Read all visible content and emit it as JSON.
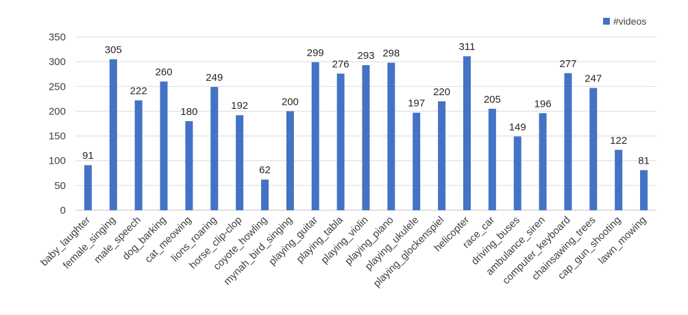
{
  "chart_data": {
    "type": "bar",
    "title": "",
    "xlabel": "",
    "ylabel": "",
    "ylim": [
      0,
      350
    ],
    "yticks": [
      0,
      50,
      100,
      150,
      200,
      250,
      300,
      350
    ],
    "grid": true,
    "legend_position": "top-right",
    "bar_color": "#4472C4",
    "categories": [
      "baby_laughter",
      "female_singing",
      "male_speech",
      "dog_barking",
      "cat_meowing",
      "lions_roaring",
      "horse_clip-clop",
      "coyote_howling",
      "mynah_bird_singing",
      "playing_guitar",
      "playing_tabla",
      "playing_violin",
      "playing_piano",
      "playing_ukulele",
      "playing_glockenspiel",
      "helicopter",
      "race_car",
      "driving_buses",
      "ambulance_siren",
      "computer_keyboard",
      "chainsawing_trees",
      "cap_gun_shooting",
      "lawn_mowing"
    ],
    "series": [
      {
        "name": "#videos",
        "values": [
          91,
          305,
          222,
          260,
          180,
          249,
          192,
          62,
          200,
          299,
          276,
          293,
          298,
          197,
          220,
          311,
          205,
          149,
          196,
          277,
          247,
          122,
          81
        ]
      }
    ]
  }
}
